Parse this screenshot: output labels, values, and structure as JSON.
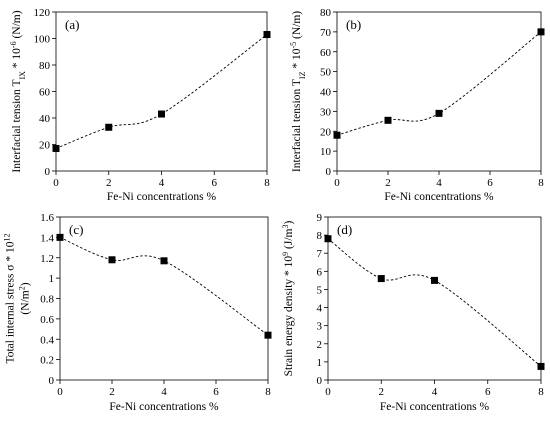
{
  "chart_data": [
    {
      "type": "scatter",
      "panel_label": "(a)",
      "xlabel": "Fe-Ni concentrations %",
      "ylabel_lines": [
        "Interfacial tension T",
        "IX",
        " * 10",
        "-6",
        " (N/m)"
      ],
      "x": [
        0,
        2,
        4,
        8
      ],
      "y": [
        17,
        33,
        43,
        103
      ],
      "xlim": [
        0,
        8
      ],
      "ylim": [
        0,
        120
      ],
      "xticks": [
        "0",
        "2",
        "4",
        "6",
        "8"
      ],
      "yticks": [
        "0",
        "20",
        "40",
        "60",
        "80",
        "100",
        "120"
      ],
      "trendline": "dashed smooth curve",
      "marker": "square",
      "grid": false
    },
    {
      "type": "scatter",
      "panel_label": "(b)",
      "xlabel": "Fe-Ni concentrations %",
      "ylabel_lines": [
        "Interfacial tension T",
        "IZ",
        " * 10",
        "-5",
        " (N/m)"
      ],
      "x": [
        0,
        2,
        4,
        8
      ],
      "y": [
        18,
        25.5,
        29,
        70
      ],
      "xlim": [
        0,
        8
      ],
      "ylim": [
        0,
        80
      ],
      "xticks": [
        "0",
        "2",
        "4",
        "6",
        "8"
      ],
      "yticks": [
        "0",
        "10",
        "20",
        "30",
        "40",
        "50",
        "60",
        "70",
        "80"
      ],
      "trendline": "dashed smooth curve",
      "marker": "square",
      "grid": false
    },
    {
      "type": "scatter",
      "panel_label": "(c)",
      "xlabel": "Fe-Ni concentrations %",
      "ylabel_lines": [
        "Total internal stress σ * 10",
        "12",
        "(N/m",
        "2",
        ")"
      ],
      "x": [
        0,
        2,
        4,
        8
      ],
      "y": [
        1.4,
        1.18,
        1.17,
        0.44
      ],
      "xlim": [
        0,
        8
      ],
      "ylim": [
        0,
        1.6
      ],
      "xticks": [
        "0",
        "2",
        "4",
        "6",
        "8"
      ],
      "yticks": [
        "0",
        "0.2",
        "0.4",
        "0.6",
        "0.8",
        "1",
        "1.2",
        "1.4",
        "1.6"
      ],
      "trendline": "dashed smooth curve",
      "marker": "square",
      "grid": false
    },
    {
      "type": "scatter",
      "panel_label": "(d)",
      "xlabel": "Fe-Ni concentrations %",
      "ylabel_lines": [
        "Strain energy density * 10",
        "9",
        " (J/m",
        "3",
        ")"
      ],
      "x": [
        0,
        2,
        4,
        8
      ],
      "y": [
        7.8,
        5.6,
        5.5,
        0.75
      ],
      "xlim": [
        0,
        8
      ],
      "ylim": [
        0,
        9
      ],
      "xticks": [
        "0",
        "2",
        "4",
        "6",
        "8"
      ],
      "yticks": [
        "0",
        "1",
        "2",
        "3",
        "4",
        "5",
        "6",
        "7",
        "8",
        "9"
      ],
      "trendline": "dashed smooth curve",
      "marker": "square",
      "grid": false
    }
  ]
}
